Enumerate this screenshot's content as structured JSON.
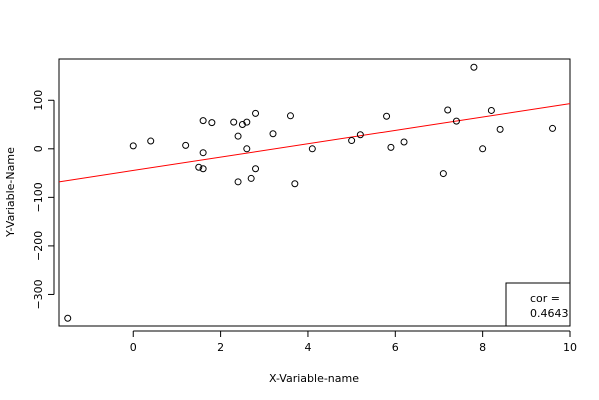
{
  "chart_data": {
    "type": "scatter",
    "title": "",
    "xlabel": "X-Variable-name",
    "ylabel": "Y-Variable-Name",
    "xlim": [
      -1.7,
      10.0
    ],
    "ylim": [
      -365,
      185
    ],
    "xticks": [
      0,
      2,
      4,
      6,
      8,
      10
    ],
    "yticks": [
      100,
      0,
      -100,
      -200,
      -300
    ],
    "xtick_labels": [
      "0",
      "2",
      "4",
      "6",
      "8",
      "10"
    ],
    "ytick_labels": [
      "100",
      "0",
      "−100",
      "−200",
      "−300"
    ],
    "grid": false,
    "series": [
      {
        "marker": "open-circle",
        "color": "#000000",
        "x": [
          -1.5,
          0.0,
          0.4,
          1.2,
          1.5,
          1.6,
          1.6,
          1.6,
          1.8,
          2.3,
          2.4,
          2.4,
          2.5,
          2.6,
          2.6,
          2.7,
          2.8,
          2.8,
          3.2,
          3.6,
          3.7,
          4.1,
          5.0,
          5.2,
          5.8,
          5.9,
          6.2,
          7.1,
          7.2,
          7.4,
          7.8,
          8.0,
          8.2,
          8.4,
          9.6
        ],
        "y": [
          -349,
          6,
          16,
          7,
          -38,
          58,
          -8,
          -41,
          54,
          55,
          26,
          -68,
          50,
          55,
          0,
          -61,
          73,
          -41,
          31,
          68,
          -72,
          0,
          17,
          29,
          67,
          3,
          14,
          -51,
          80,
          57,
          168,
          0,
          79,
          40,
          42
        ]
      }
    ],
    "regression_line": {
      "color": "#ff0000",
      "x": [
        -1.7,
        10.0
      ],
      "y": [
        -68,
        93
      ]
    },
    "legend": {
      "label": "cor =",
      "value": "0.4643",
      "position": "bottom-right"
    }
  }
}
